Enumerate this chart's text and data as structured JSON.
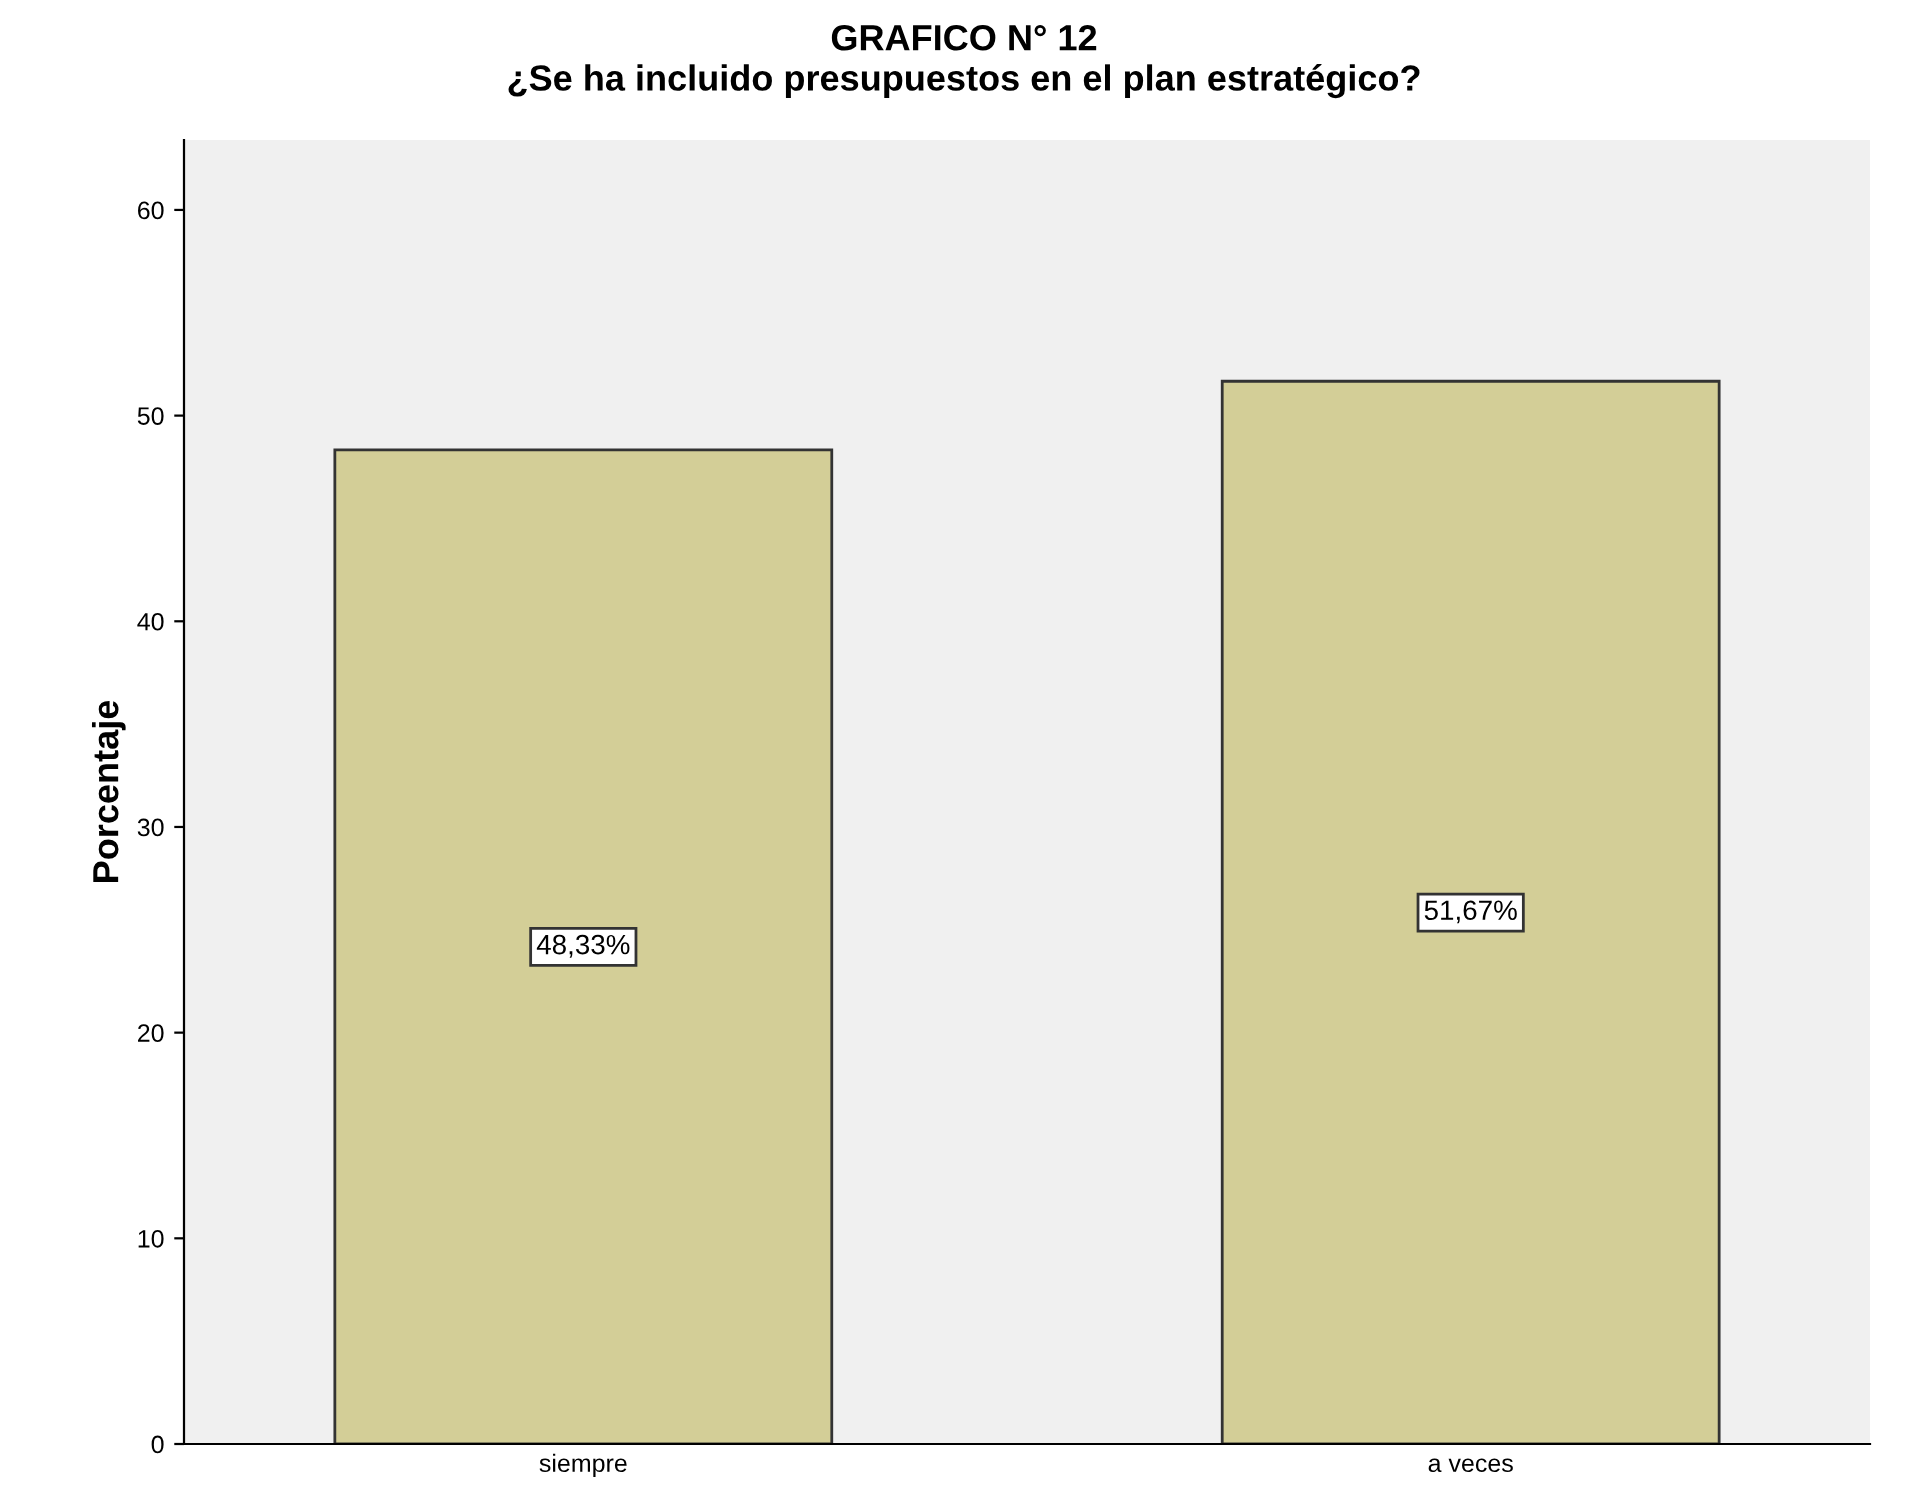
{
  "chart_data": {
    "type": "bar",
    "title": "GRAFICO N° 12",
    "subtitle": "¿Se ha incluido presupuestos en el plan estratégico?",
    "ylabel": "Porcentaje",
    "categories": [
      "siempre",
      "a veces"
    ],
    "values": [
      48.33,
      51.67
    ],
    "value_labels": [
      "48,33%",
      "51,67%"
    ],
    "color": "#d3ce97",
    "ylim": [
      0,
      63.4
    ],
    "yticks": [
      0,
      10,
      20,
      30,
      40,
      50,
      60
    ],
    "grid": false,
    "legend": false
  }
}
